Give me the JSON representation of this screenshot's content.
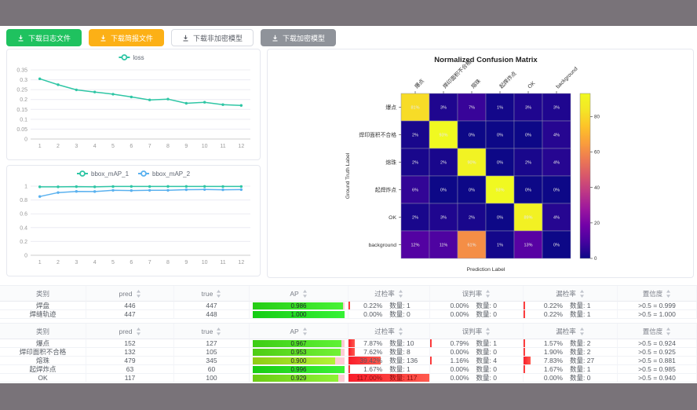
{
  "toolbar": {
    "buttons": [
      {
        "label": "下载日志文件",
        "style": "green"
      },
      {
        "label": "下载简报文件",
        "style": "orange"
      },
      {
        "label": "下载非加密模型",
        "style": "plain"
      },
      {
        "label": "下载加密模型",
        "style": "gray"
      }
    ]
  },
  "colors": {
    "teal": "#2fc6a5",
    "blue": "#5ab1ef",
    "bar_red": "#f92332",
    "ap_rest_pink": "#ffccd4",
    "axis_text": "#999999",
    "grid_line": "#ececf2"
  },
  "chart_data": [
    {
      "type": "line",
      "title": "",
      "legend_position": "top-center",
      "grid": true,
      "x": [
        1,
        2,
        3,
        4,
        5,
        6,
        7,
        8,
        9,
        10,
        11,
        12
      ],
      "series": [
        {
          "name": "loss",
          "color": "#2fc6a5",
          "values": [
            0.305,
            0.275,
            0.249,
            0.238,
            0.227,
            0.213,
            0.198,
            0.202,
            0.181,
            0.186,
            0.174,
            0.17
          ]
        }
      ],
      "ylim": [
        0,
        0.35
      ],
      "yticks": [
        0,
        0.05,
        0.1,
        0.15,
        0.2,
        0.25,
        0.3,
        0.35
      ],
      "xlabel": "",
      "ylabel": ""
    },
    {
      "type": "line",
      "title": "",
      "legend_position": "top-center",
      "grid": true,
      "x": [
        1,
        2,
        3,
        4,
        5,
        6,
        7,
        8,
        9,
        10,
        11,
        12
      ],
      "series": [
        {
          "name": "bbox_mAP_1",
          "color": "#2fc6a5",
          "values": [
            0.99,
            0.99,
            0.993,
            0.99,
            0.995,
            0.996,
            0.995,
            0.996,
            0.996,
            0.996,
            0.995,
            0.995
          ]
        },
        {
          "name": "bbox_mAP_2",
          "color": "#5ab1ef",
          "values": [
            0.85,
            0.907,
            0.924,
            0.922,
            0.94,
            0.936,
            0.94,
            0.94,
            0.949,
            0.951,
            0.948,
            0.95
          ]
        }
      ],
      "ylim": [
        0,
        1
      ],
      "yticks": [
        0,
        0.2,
        0.4,
        0.6,
        0.8,
        1
      ],
      "xlabel": "",
      "ylabel": ""
    },
    {
      "type": "heatmap",
      "title": "Normalized Confusion Matrix",
      "xlabel": "Prediction Label",
      "ylabel": "Ground Truth Label",
      "labels": [
        "爆点",
        "焊印面积不合格",
        "熔珠",
        "起焊炸点",
        "OK",
        "background"
      ],
      "matrix": [
        [
          81,
          3,
          7,
          1,
          3,
          3
        ],
        [
          2,
          93,
          0,
          0,
          0,
          4
        ],
        [
          2,
          2,
          90,
          0,
          2,
          4
        ],
        [
          6,
          0,
          0,
          93,
          0,
          0
        ],
        [
          2,
          3,
          2,
          0,
          89,
          4
        ],
        [
          12,
          11,
          61,
          1,
          13,
          0
        ]
      ],
      "vmax": 93,
      "colormap": "plasma",
      "colorbar_ticks": [
        0,
        20,
        40,
        60,
        80
      ],
      "legend_position": "colorbar-right"
    }
  ],
  "tables": {
    "headers": [
      {
        "label": "类别",
        "sortable": false
      },
      {
        "label": "pred",
        "sortable": true
      },
      {
        "label": "true",
        "sortable": true
      },
      {
        "label": "AP",
        "sortable": true
      },
      {
        "label": "过检率",
        "sortable": true
      },
      {
        "label": "误判率",
        "sortable": true
      },
      {
        "label": "漏检率",
        "sortable": true
      },
      {
        "label": "置信度",
        "sortable": true
      }
    ],
    "groups": [
      {
        "rows": [
          {
            "name": "焊盘",
            "pred": "446",
            "true": "447",
            "ap": "0.986",
            "ap_val": 0.986,
            "rates": [
              {
                "text": "0.22%",
                "count": "数量: 1",
                "pct": 0.22
              },
              {
                "text": "0.00%",
                "count": "数量: 0",
                "pct": 0
              },
              {
                "text": "0.22%",
                "count": "数量: 1",
                "pct": 0.22
              }
            ],
            "conf": ">0.5 = 0.999"
          },
          {
            "name": "焊缝轨迹",
            "pred": "447",
            "true": "448",
            "ap": "1.000",
            "ap_val": 1.0,
            "rates": [
              {
                "text": "0.00%",
                "count": "数量: 0",
                "pct": 0
              },
              {
                "text": "0.00%",
                "count": "数量: 0",
                "pct": 0
              },
              {
                "text": "0.22%",
                "count": "数量: 1",
                "pct": 0.22
              }
            ],
            "conf": ">0.5 = 1.000"
          }
        ]
      },
      {
        "rows": [
          {
            "name": "爆点",
            "pred": "152",
            "true": "127",
            "ap": "0.967",
            "ap_val": 0.967,
            "rates": [
              {
                "text": "7.87%",
                "count": "数量: 10",
                "pct": 7.87
              },
              {
                "text": "0.79%",
                "count": "数量: 1",
                "pct": 0.79
              },
              {
                "text": "1.57%",
                "count": "数量: 2",
                "pct": 1.57
              }
            ],
            "conf": ">0.5 = 0.924"
          },
          {
            "name": "焊印面积不合格",
            "pred": "132",
            "true": "105",
            "ap": "0.953",
            "ap_val": 0.953,
            "rates": [
              {
                "text": "7.62%",
                "count": "数量: 8",
                "pct": 7.62
              },
              {
                "text": "0.00%",
                "count": "数量: 0",
                "pct": 0
              },
              {
                "text": "1.90%",
                "count": "数量: 2",
                "pct": 1.9
              }
            ],
            "conf": ">0.5 = 0.925"
          },
          {
            "name": "熔珠",
            "pred": "479",
            "true": "345",
            "ap": "0.900",
            "ap_val": 0.9,
            "rates": [
              {
                "text": "39.42%",
                "count": "数量: 136",
                "pct": 39.42
              },
              {
                "text": "1.16%",
                "count": "数量: 4",
                "pct": 1.16
              },
              {
                "text": "7.83%",
                "count": "数量: 27",
                "pct": 7.83
              }
            ],
            "conf": ">0.5 = 0.881"
          },
          {
            "name": "起焊炸点",
            "pred": "63",
            "true": "60",
            "ap": "0.996",
            "ap_val": 0.996,
            "rates": [
              {
                "text": "1.67%",
                "count": "数量: 1",
                "pct": 1.67
              },
              {
                "text": "0.00%",
                "count": "数量: 0",
                "pct": 0
              },
              {
                "text": "1.67%",
                "count": "数量: 1",
                "pct": 1.67
              }
            ],
            "conf": ">0.5 = 0.985"
          },
          {
            "name": "OK",
            "pred": "117",
            "true": "100",
            "ap": "0.929",
            "ap_val": 0.929,
            "rates": [
              {
                "text": "117.00%",
                "count": "数量: 117",
                "pct": 117
              },
              {
                "text": "0.00%",
                "count": "数量: 0",
                "pct": 0
              },
              {
                "text": "0.00%",
                "count": "数量: 0",
                "pct": 0
              }
            ],
            "conf": ">0.5 = 0.940"
          }
        ]
      }
    ]
  }
}
